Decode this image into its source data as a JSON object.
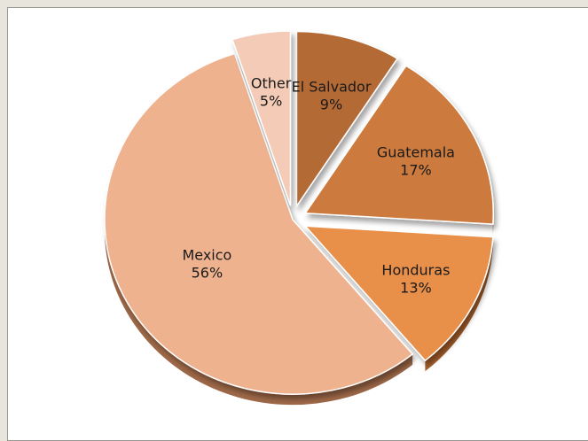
{
  "chart_data": {
    "type": "pie",
    "title": "",
    "slices": [
      {
        "label": "El Salvador",
        "value": 9,
        "percent_label": "9%",
        "color": "#b46a35",
        "side": "#8a4f26",
        "exploded": true
      },
      {
        "label": "Guatemala",
        "value": 17,
        "percent_label": "17%",
        "color": "#cc7a3c",
        "side": "#9c5b2c",
        "exploded": true
      },
      {
        "label": "Honduras",
        "value": 13,
        "percent_label": "13%",
        "color": "#e88f48",
        "side": "#a65e2b",
        "exploded": true
      },
      {
        "label": "Mexico",
        "value": 56,
        "percent_label": "56%",
        "color": "#efb28f",
        "side": "#9e6848",
        "exploded": false
      },
      {
        "label": "Other",
        "value": 5,
        "percent_label": "5%",
        "color": "#f4cbb6",
        "side": "#b58a73",
        "exploded": true
      }
    ],
    "legend": "none",
    "data_labels": "category name and percentage inside slice"
  }
}
